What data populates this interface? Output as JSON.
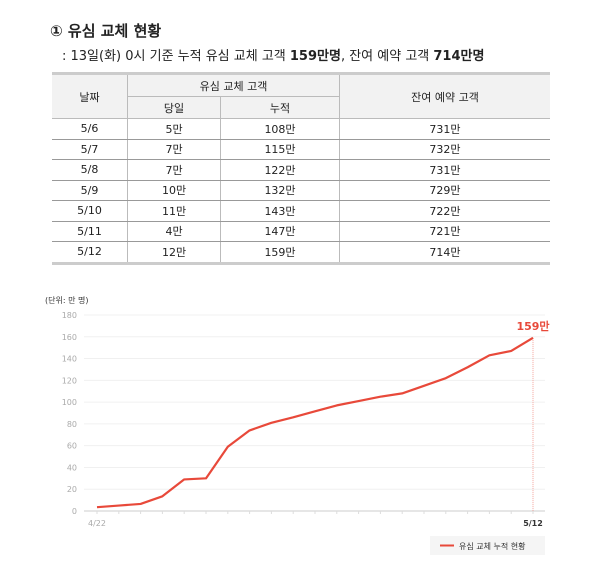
{
  "heading": "① 유심 교체 현황",
  "subtitle": {
    "prefix": ": 13일(화) 0시 기준 누적 유심 교체 고객 ",
    "v1": "159만명",
    "mid": ", 잔여 예약 고객 ",
    "v2": "714만명"
  },
  "table": {
    "headers": {
      "date": "날짜",
      "group": "유심 교체 고객",
      "daily": "당일",
      "cumulative": "누적",
      "remaining": "잔여 예약 고객"
    },
    "rows": [
      [
        "5/6",
        "5만",
        "108만",
        "731만"
      ],
      [
        "5/7",
        "7만",
        "115만",
        "732만"
      ],
      [
        "5/8",
        "7만",
        "122만",
        "731만"
      ],
      [
        "5/9",
        "10만",
        "132만",
        "729만"
      ],
      [
        "5/10",
        "11만",
        "143만",
        "722만"
      ],
      [
        "5/11",
        "4만",
        "147만",
        "721만"
      ],
      [
        "5/12",
        "12만",
        "159만",
        "714만"
      ]
    ]
  },
  "chart_data": {
    "type": "line",
    "unit_label": "(단위: 만 명)",
    "x": [
      "4/22",
      "4/23",
      "4/24",
      "4/25",
      "4/26",
      "4/27",
      "4/28",
      "4/29",
      "4/30",
      "5/1",
      "5/2",
      "5/3",
      "5/4",
      "5/5",
      "5/6",
      "5/7",
      "5/8",
      "5/9",
      "5/10",
      "5/11",
      "5/12"
    ],
    "x_tick_labels": [
      "4/22",
      "5/12"
    ],
    "series": [
      {
        "name": "유심 교체 누적 현황",
        "color": "#e8493a",
        "values": [
          3.5,
          5,
          6.5,
          13.5,
          29,
          30,
          59,
          74,
          81,
          86,
          91.5,
          97,
          101,
          105,
          108,
          115,
          122,
          132,
          143,
          147,
          159
        ]
      }
    ],
    "ylim": [
      0,
      180
    ],
    "yticks": [
      0,
      20,
      40,
      60,
      80,
      100,
      120,
      140,
      160,
      180
    ],
    "annotation": "159만",
    "grid": true,
    "legend": "bottom-right"
  }
}
